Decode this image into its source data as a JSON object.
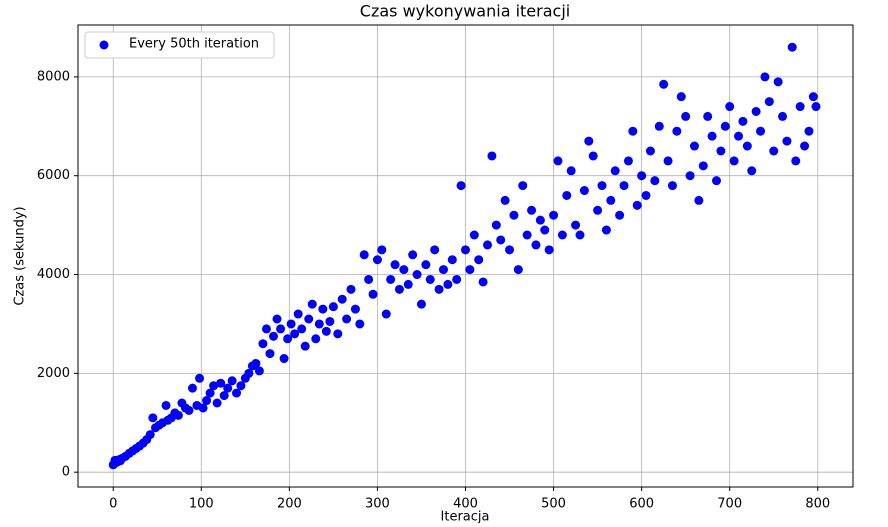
{
  "chart_data": {
    "type": "scatter",
    "title": "Czas wykonywania iteracji",
    "xlabel": "Iteracja",
    "ylabel": "Czas (sekundy)",
    "xlim": [
      -40,
      840
    ],
    "ylim": [
      -300,
      9050
    ],
    "xticks": [
      0,
      100,
      200,
      300,
      400,
      500,
      600,
      700,
      800
    ],
    "yticks": [
      0,
      2000,
      4000,
      6000,
      8000
    ],
    "grid": true,
    "legend": "upper left",
    "series": [
      {
        "name": "Every 50th iteration",
        "color": "#0000ff",
        "x": [
          0,
          2,
          4,
          6,
          8,
          10,
          14,
          18,
          22,
          26,
          30,
          34,
          38,
          42,
          45,
          48,
          52,
          56,
          60,
          62,
          66,
          70,
          74,
          78,
          82,
          86,
          90,
          95,
          98,
          102,
          106,
          110,
          114,
          118,
          122,
          126,
          130,
          135,
          140,
          145,
          150,
          154,
          158,
          162,
          166,
          170,
          174,
          178,
          182,
          186,
          190,
          194,
          198,
          202,
          206,
          210,
          214,
          218,
          222,
          226,
          230,
          234,
          238,
          242,
          246,
          250,
          255,
          260,
          265,
          270,
          275,
          280,
          285,
          290,
          295,
          300,
          305,
          310,
          315,
          320,
          325,
          330,
          335,
          340,
          345,
          350,
          355,
          360,
          365,
          370,
          375,
          380,
          385,
          390,
          395,
          400,
          405,
          410,
          415,
          420,
          425,
          430,
          435,
          440,
          445,
          450,
          455,
          460,
          465,
          470,
          475,
          480,
          485,
          490,
          495,
          500,
          505,
          510,
          515,
          520,
          525,
          530,
          535,
          540,
          545,
          550,
          555,
          560,
          565,
          570,
          575,
          580,
          585,
          590,
          595,
          600,
          605,
          610,
          615,
          620,
          625,
          630,
          635,
          640,
          645,
          650,
          655,
          660,
          665,
          670,
          675,
          680,
          685,
          690,
          695,
          700,
          705,
          710,
          715,
          720,
          725,
          730,
          735,
          740,
          745,
          750,
          755,
          760,
          765,
          771,
          775,
          780,
          785,
          790,
          795,
          798
        ],
        "values": [
          150,
          240,
          200,
          250,
          230,
          280,
          320,
          380,
          430,
          480,
          530,
          590,
          660,
          760,
          1100,
          900,
          950,
          1000,
          1350,
          1050,
          1100,
          1200,
          1150,
          1400,
          1300,
          1250,
          1700,
          1350,
          1900,
          1300,
          1450,
          1600,
          1750,
          1400,
          1800,
          1550,
          1700,
          1850,
          1600,
          1750,
          1900,
          2000,
          2150,
          2200,
          2050,
          2600,
          2900,
          2400,
          2750,
          3100,
          2900,
          2300,
          2700,
          3000,
          2800,
          3200,
          2900,
          2550,
          3100,
          3400,
          2700,
          3000,
          3300,
          2850,
          3050,
          3350,
          2800,
          3500,
          3100,
          3700,
          3300,
          3000,
          4400,
          3900,
          3600,
          4300,
          4500,
          3200,
          3900,
          4200,
          3700,
          4100,
          3800,
          4400,
          4000,
          3400,
          4200,
          3900,
          4500,
          3700,
          4100,
          3800,
          4300,
          3900,
          5800,
          4500,
          4100,
          4800,
          4300,
          3850,
          4600,
          6400,
          5000,
          4700,
          5500,
          4500,
          5200,
          4100,
          5800,
          4800,
          5300,
          4600,
          5100,
          4900,
          4500,
          5200,
          6300,
          4800,
          5600,
          6100,
          5000,
          4800,
          5700,
          6700,
          6400,
          5300,
          5800,
          4900,
          5500,
          6100,
          5200,
          5800,
          6300,
          6900,
          5400,
          6000,
          5600,
          6500,
          5900,
          7000,
          7850,
          6300,
          5800,
          6900,
          7600,
          7200,
          6000,
          6600,
          5500,
          6200,
          7200,
          6800,
          5900,
          6500,
          7000,
          7400,
          6300,
          6800,
          7100,
          6600,
          6100,
          7300,
          6900,
          8000,
          7500,
          6500,
          7900,
          7200,
          6700,
          8600,
          6300,
          7400,
          6600,
          6900,
          7600,
          7400
        ]
      }
    ]
  }
}
